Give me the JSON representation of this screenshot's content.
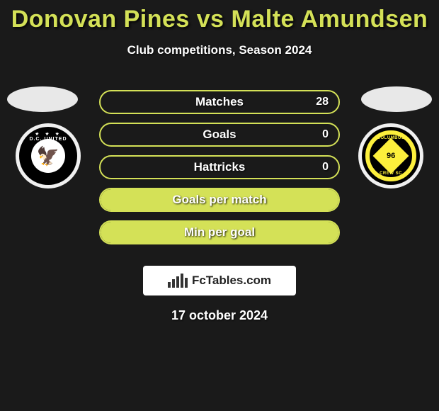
{
  "title": "Donovan Pines vs Malte Amundsen",
  "subtitle": "Club competitions, Season 2024",
  "date": "17 october 2024",
  "brand": "FcTables.com",
  "colors": {
    "accent": "#d4e157",
    "bg": "#1a1a1a",
    "text": "#ffffff",
    "brand_bg": "#ffffff",
    "brand_text": "#222222"
  },
  "badges": {
    "left": {
      "label": "D.C. UNITED",
      "year": "",
      "primary": "#000000",
      "secondary": "#ffffff"
    },
    "right": {
      "label_top": "COLUMBUS",
      "label_bot": "CREW SC",
      "year": "96",
      "primary": "#000000",
      "secondary": "#fcef3c"
    }
  },
  "stats": [
    {
      "label": "Matches",
      "right_value": "28",
      "fill_pct": 0
    },
    {
      "label": "Goals",
      "right_value": "0",
      "fill_pct": 0
    },
    {
      "label": "Hattricks",
      "right_value": "0",
      "fill_pct": 0
    },
    {
      "label": "Goals per match",
      "right_value": "",
      "fill_pct": 100
    },
    {
      "label": "Min per goal",
      "right_value": "",
      "fill_pct": 100
    }
  ],
  "brand_bars": [
    8,
    12,
    16,
    20,
    14
  ]
}
